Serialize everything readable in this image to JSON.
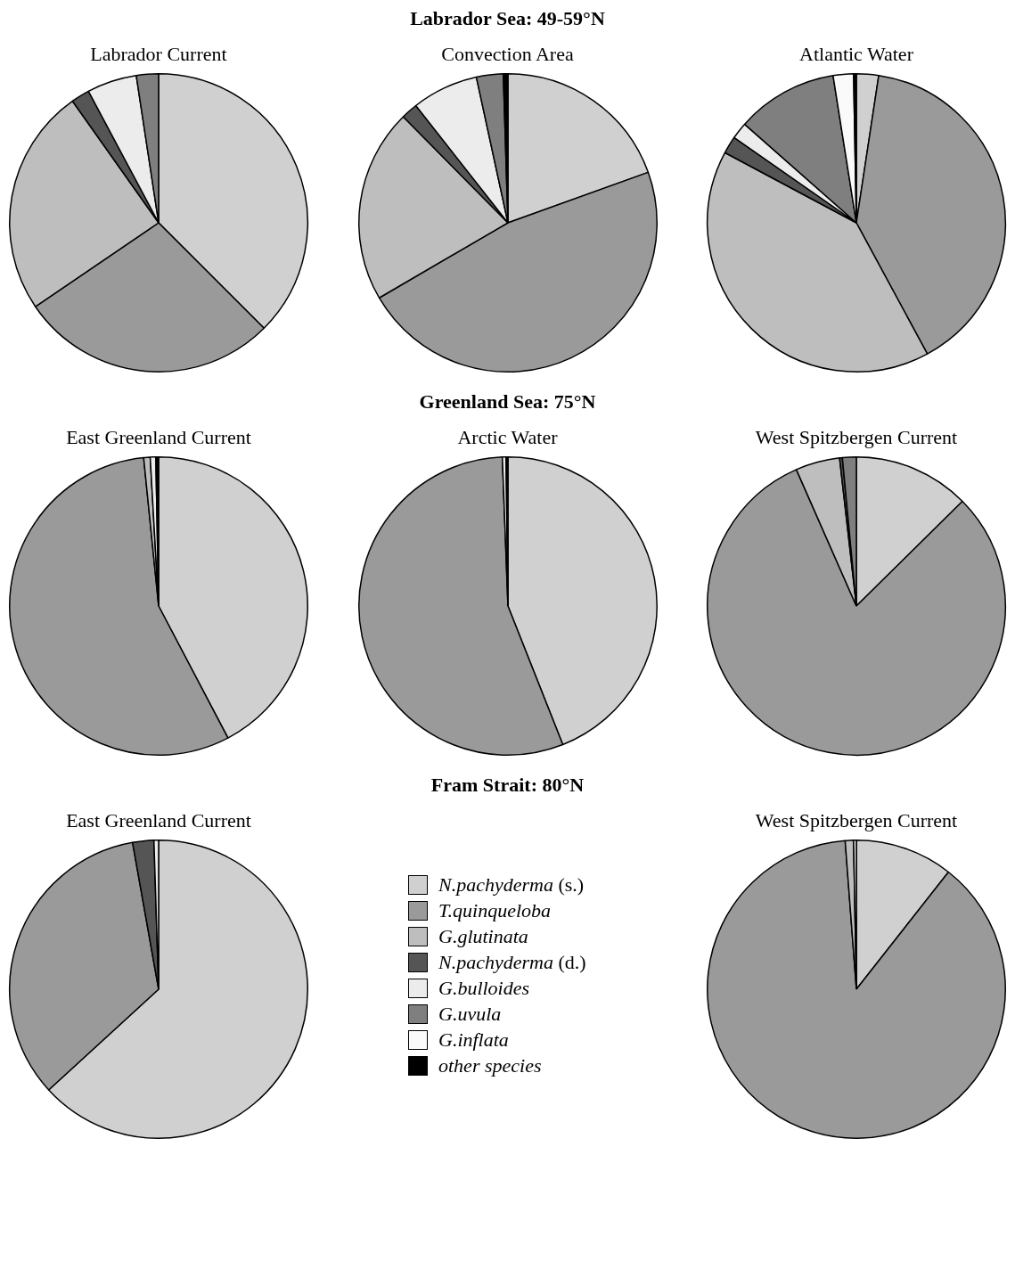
{
  "chart_data": [
    {
      "type": "pie",
      "title": "Labrador Current",
      "annotations": [
        "Labrador Sea: 49-59°N"
      ],
      "categories": [
        null,
        null,
        null,
        null,
        null,
        null,
        null,
        null
      ],
      "values": [
        37.5,
        28,
        24.7,
        2,
        5.4,
        2.4,
        0,
        0
      ],
      "colors": [
        "#d0d0d0",
        "#9a9a9a",
        "#bebebe",
        "#555555",
        "#ececec",
        "#7f7f7f",
        "#fafafa",
        "#000000"
      ]
    },
    {
      "type": "pie",
      "title": "Convection Area",
      "categories": [
        null,
        null,
        null,
        null,
        null,
        null,
        null,
        null
      ],
      "values": [
        19.5,
        47.1,
        21,
        1.8,
        7.2,
        2.9,
        0,
        0.5
      ],
      "colors": [
        "#d0d0d0",
        "#9a9a9a",
        "#bebebe",
        "#555555",
        "#ececec",
        "#7f7f7f",
        "#fafafa",
        "#000000"
      ]
    },
    {
      "type": "pie",
      "title": "Atlantic Water",
      "categories": [
        null,
        null,
        null,
        null,
        null,
        null,
        null,
        null
      ],
      "values": [
        2.4,
        39.7,
        40.7,
        1.9,
        1.8,
        11,
        2.2,
        0.3
      ],
      "colors": [
        "#d0d0d0",
        "#9a9a9a",
        "#bebebe",
        "#555555",
        "#ececec",
        "#7f7f7f",
        "#fafafa",
        "#000000"
      ]
    },
    {
      "type": "pie",
      "title": "East Greenland Current",
      "annotations": [
        "Greenland Sea: 75°N"
      ],
      "categories": [
        null,
        null,
        null,
        null,
        null,
        null,
        null,
        null
      ],
      "values": [
        42.3,
        56.1,
        0.7,
        0,
        0.6,
        0,
        0,
        0.3
      ],
      "colors": [
        "#d0d0d0",
        "#9a9a9a",
        "#bebebe",
        "#555555",
        "#ececec",
        "#7f7f7f",
        "#fafafa",
        "#000000"
      ]
    },
    {
      "type": "pie",
      "title": "Arctic Water",
      "categories": [
        null,
        null,
        null,
        null,
        null,
        null,
        null,
        null
      ],
      "values": [
        44,
        55.4,
        0,
        0,
        0.4,
        0,
        0,
        0.2
      ],
      "colors": [
        "#d0d0d0",
        "#9a9a9a",
        "#bebebe",
        "#555555",
        "#ececec",
        "#7f7f7f",
        "#fafafa",
        "#000000"
      ]
    },
    {
      "type": "pie",
      "title": "West Spitzbergen Current",
      "categories": [
        null,
        null,
        null,
        null,
        null,
        null,
        null,
        null
      ],
      "values": [
        12.6,
        80.8,
        4.8,
        0.3,
        0,
        1.5,
        0,
        0
      ],
      "colors": [
        "#d0d0d0",
        "#9a9a9a",
        "#bebebe",
        "#555555",
        "#ececec",
        "#7f7f7f",
        "#fafafa",
        "#000000"
      ]
    },
    {
      "type": "pie",
      "title": "East Greenland Current",
      "annotations": [
        "Fram Strait: 80°N"
      ],
      "legend": "right",
      "categories": [
        "N.pachyderma (s.)",
        "T.quinqueloba",
        "G.glutinata",
        "N.pachyderma (d.)",
        "G.bulloides",
        "G.uvula",
        "G.inflata",
        "other species"
      ],
      "values": [
        63.2,
        34,
        0,
        2.3,
        0.5,
        0,
        0,
        0
      ],
      "colors": [
        "#d0d0d0",
        "#9a9a9a",
        "#bebebe",
        "#555555",
        "#ececec",
        "#7f7f7f",
        "#fafafa",
        "#000000"
      ]
    },
    {
      "type": "pie",
      "title": "West Spitzbergen Current",
      "categories": [
        null,
        null,
        null,
        null,
        null,
        null,
        null,
        null
      ],
      "values": [
        10.6,
        88.2,
        0.9,
        0,
        0.3,
        0,
        0,
        0
      ],
      "colors": [
        "#d0d0d0",
        "#9a9a9a",
        "#bebebe",
        "#555555",
        "#ececec",
        "#7f7f7f",
        "#fafafa",
        "#000000"
      ]
    }
  ]
}
